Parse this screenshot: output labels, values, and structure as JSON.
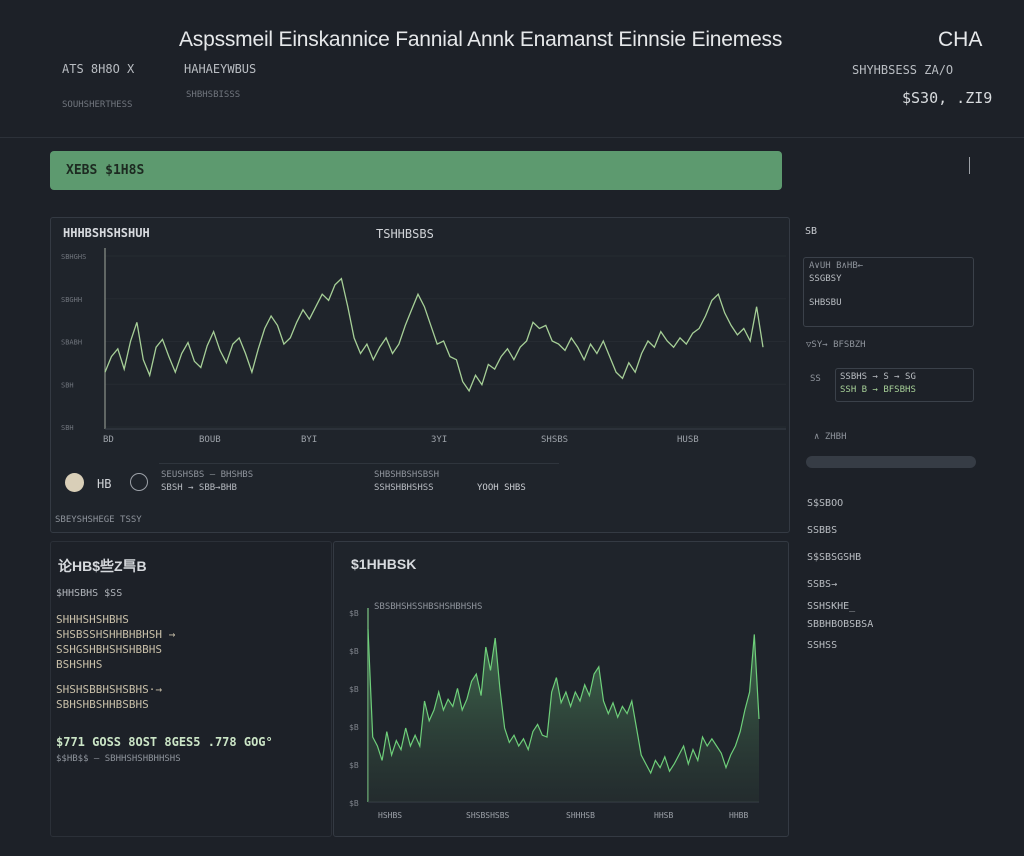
{
  "header": {
    "title": "Aspssmeil Einskannice Fannial  Annk Enamanst Einnsie Einemess",
    "currency": "CHA",
    "sub_left_1": "ATS 8H8O  X",
    "sub_left_2": "HAHAEYWBUS",
    "sub_left_3": "SOUHSHERTHESS",
    "sub_left_4": "SHBHSBISSS",
    "right_label": "SHYHBSESS ZA/O",
    "right_value": "$S30, .ZI9"
  },
  "banner": {
    "label": "XEBS $1H8S"
  },
  "main_chart_panel": {
    "title_left": "HHHBSHSHSHUH",
    "title_center": "TSHHBSBS",
    "y_ticks": [
      "SBHGHS",
      "SBGHH",
      "SBABH",
      "SBH",
      "SBH"
    ],
    "x_ticks": [
      "BD",
      "BOUB",
      "BYI",
      "3YI",
      "SHSBS",
      "HUSB"
    ],
    "radio_label": "HB",
    "legend_1": "SEUSHSBS — BHSHBS",
    "legend_2": "SBSH → SBB→BHB",
    "legend_3": "SHBSHBSHSBSH",
    "legend_4": "SSHSHBHSHSS",
    "legend_5": "YOOH SHBS",
    "footer": "SBEYSHSHEGE TSSY"
  },
  "chart_data": [
    {
      "type": "line",
      "title": "TSHHBSBS",
      "series": [
        {
          "values": [
            0.3,
            0.4,
            0.45,
            0.32,
            0.5,
            0.62,
            0.38,
            0.28,
            0.46,
            0.51,
            0.4,
            0.3,
            0.42,
            0.49,
            0.37,
            0.33,
            0.47,
            0.56,
            0.44,
            0.36,
            0.48,
            0.52,
            0.42,
            0.3,
            0.45,
            0.58,
            0.66,
            0.6,
            0.48,
            0.52,
            0.62,
            0.7,
            0.64,
            0.72,
            0.8,
            0.76,
            0.86,
            0.9,
            0.72,
            0.52,
            0.42,
            0.48,
            0.38,
            0.46,
            0.52,
            0.42,
            0.48,
            0.6,
            0.7,
            0.8,
            0.72,
            0.6,
            0.48,
            0.5,
            0.4,
            0.38,
            0.24,
            0.18,
            0.28,
            0.22,
            0.35,
            0.32,
            0.4,
            0.45,
            0.38,
            0.46,
            0.5,
            0.62,
            0.58,
            0.6,
            0.5,
            0.48,
            0.44,
            0.52,
            0.46,
            0.38,
            0.48,
            0.42,
            0.5,
            0.4,
            0.3,
            0.26,
            0.36,
            0.3,
            0.42,
            0.5,
            0.46,
            0.56,
            0.5,
            0.46,
            0.52,
            0.48,
            0.55,
            0.58,
            0.66,
            0.76,
            0.8,
            0.68,
            0.6,
            0.54,
            0.58,
            0.5,
            0.72,
            0.46
          ]
        }
      ]
    },
    {
      "type": "area",
      "title": "$1HHBSK",
      "series": [
        {
          "values": [
            0.95,
            0.35,
            0.3,
            0.22,
            0.38,
            0.25,
            0.33,
            0.28,
            0.4,
            0.3,
            0.36,
            0.3,
            0.55,
            0.44,
            0.5,
            0.6,
            0.5,
            0.56,
            0.52,
            0.62,
            0.5,
            0.56,
            0.66,
            0.7,
            0.58,
            0.85,
            0.72,
            0.9,
            0.62,
            0.4,
            0.32,
            0.36,
            0.3,
            0.34,
            0.28,
            0.38,
            0.42,
            0.36,
            0.35,
            0.6,
            0.68,
            0.54,
            0.6,
            0.52,
            0.6,
            0.55,
            0.64,
            0.58,
            0.7,
            0.74,
            0.55,
            0.48,
            0.54,
            0.46,
            0.52,
            0.48,
            0.55,
            0.4,
            0.25,
            0.2,
            0.15,
            0.22,
            0.18,
            0.24,
            0.16,
            0.2,
            0.25,
            0.3,
            0.2,
            0.28,
            0.22,
            0.35,
            0.3,
            0.34,
            0.3,
            0.26,
            0.18,
            0.25,
            0.3,
            0.38,
            0.5,
            0.6,
            0.92,
            0.45
          ]
        }
      ]
    }
  ],
  "left_panel": {
    "title": "论HB$些Z巪B",
    "line_1": "$HHSBHS $SS",
    "para_1": [
      "SHHHSHSHBHS",
      "SHSBSSHSHHBHBHSH →",
      "SSHGSHBHSHSHBBHS",
      "BSHSHHS"
    ],
    "para_2": [
      "SHSHSBBHSHSBHS·→",
      "SBHSHBSHHBSBHS"
    ],
    "total_line": "$771 GOSS 8OST 8GES5 .778 GOG°",
    "sub_line": "$$HB$$ — SBHHSHSHBHHSHS"
  },
  "right_panel": {
    "title": "$1HHBSK",
    "series_label": "SBSBHSHSSHBSHSHBHSHS",
    "y_ticks": [
      "$B",
      "$B",
      "$B",
      "$B",
      "$B",
      "$B"
    ],
    "x_ticks": [
      "HSHBS",
      "SHSBSHSBS",
      "SHHHSB",
      "HHSB",
      "HHBB"
    ]
  },
  "side_panel": {
    "title": "SB",
    "box1_line1": "A∨UH B∧HB←",
    "box1_line2": "SSGBSY",
    "box1_line3": "SHBSBU",
    "label_2": "▽SY→ BFSBZH",
    "box2_prefix": "SS",
    "box2_line1": "SSBHS → S → SG",
    "box2_line2": "SSH B → BFSBHS",
    "label_3": "∧ ZHBH",
    "items": [
      "S$SBOO",
      "SSBBS",
      "S$SBSGSHB",
      "SSBS→",
      "SSHSKHE_",
      "SBBHBOBSBSA",
      "SSHSS"
    ]
  },
  "colors": {
    "accent": "#5d9a6f",
    "line": "#a6cf97",
    "area_line": "#6ecf7a",
    "background": "#1d2128"
  }
}
